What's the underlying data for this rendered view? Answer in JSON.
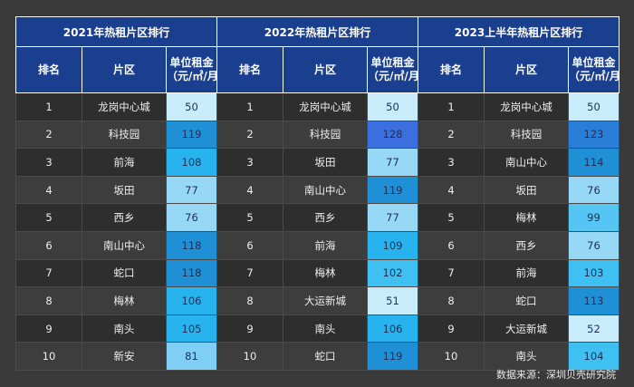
{
  "panels": [
    {
      "title": "2021年热租片区排行",
      "headers": [
        "排名",
        "片区",
        "单位租金",
        "（元/㎡/月）"
      ],
      "rows": [
        {
          "rank": "1",
          "area": "龙岗中心城",
          "rent": "50",
          "color": "#c9ecfb"
        },
        {
          "rank": "2",
          "area": "科技园",
          "rent": "119",
          "color": "#1f8fd6"
        },
        {
          "rank": "3",
          "area": "前海",
          "rent": "108",
          "color": "#27b4ee"
        },
        {
          "rank": "4",
          "area": "坂田",
          "rent": "77",
          "color": "#97d8f7"
        },
        {
          "rank": "5",
          "area": "西乡",
          "rent": "76",
          "color": "#97d8f7"
        },
        {
          "rank": "6",
          "area": "南山中心",
          "rent": "118",
          "color": "#1f8fd6"
        },
        {
          "rank": "7",
          "area": "蛇口",
          "rent": "118",
          "color": "#1f8fd6"
        },
        {
          "rank": "8",
          "area": "梅林",
          "rent": "106",
          "color": "#27b4ee"
        },
        {
          "rank": "9",
          "area": "南头",
          "rent": "105",
          "color": "#27b4ee"
        },
        {
          "rank": "10",
          "area": "新安",
          "rent": "81",
          "color": "#7fcef5"
        }
      ]
    },
    {
      "title": "2022年热租片区排行",
      "headers": [
        "排名",
        "片区",
        "单位租金",
        "（元/㎡/月）"
      ],
      "rows": [
        {
          "rank": "1",
          "area": "龙岗中心城",
          "rent": "50",
          "color": "#c9ecfb"
        },
        {
          "rank": "2",
          "area": "科技园",
          "rent": "128",
          "color": "#3b6fe0"
        },
        {
          "rank": "3",
          "area": "坂田",
          "rent": "77",
          "color": "#97d8f7"
        },
        {
          "rank": "4",
          "area": "南山中心",
          "rent": "119",
          "color": "#1f8fd6"
        },
        {
          "rank": "5",
          "area": "西乡",
          "rent": "77",
          "color": "#97d8f7"
        },
        {
          "rank": "6",
          "area": "前海",
          "rent": "109",
          "color": "#27b4ee"
        },
        {
          "rank": "7",
          "area": "梅林",
          "rent": "102",
          "color": "#3ec0f2"
        },
        {
          "rank": "8",
          "area": "大运新城",
          "rent": "51",
          "color": "#c9ecfb"
        },
        {
          "rank": "9",
          "area": "南头",
          "rent": "106",
          "color": "#27b4ee"
        },
        {
          "rank": "10",
          "area": "蛇口",
          "rent": "119",
          "color": "#1f8fd6"
        }
      ]
    },
    {
      "title": "2023上半年热租片区排行",
      "headers": [
        "排名",
        "片区",
        "单位租金",
        "（元/㎡/月）"
      ],
      "rows": [
        {
          "rank": "1",
          "area": "龙岗中心城",
          "rent": "50",
          "color": "#c9ecfb"
        },
        {
          "rank": "2",
          "area": "科技园",
          "rent": "123",
          "color": "#2a7ed8"
        },
        {
          "rank": "3",
          "area": "南山中心",
          "rent": "114",
          "color": "#1f8fd6"
        },
        {
          "rank": "4",
          "area": "坂田",
          "rent": "76",
          "color": "#97d8f7"
        },
        {
          "rank": "5",
          "area": "梅林",
          "rent": "99",
          "color": "#55c6f3"
        },
        {
          "rank": "6",
          "area": "西乡",
          "rent": "76",
          "color": "#97d8f7"
        },
        {
          "rank": "7",
          "area": "前海",
          "rent": "103",
          "color": "#3ec0f2"
        },
        {
          "rank": "8",
          "area": "蛇口",
          "rent": "113",
          "color": "#1f8fd6"
        },
        {
          "rank": "9",
          "area": "大运新城",
          "rent": "52",
          "color": "#c9ecfb"
        },
        {
          "rank": "10",
          "area": "南头",
          "rent": "104",
          "color": "#3ec0f2"
        }
      ]
    }
  ],
  "source": "数据来源：深圳贝壳研究院"
}
